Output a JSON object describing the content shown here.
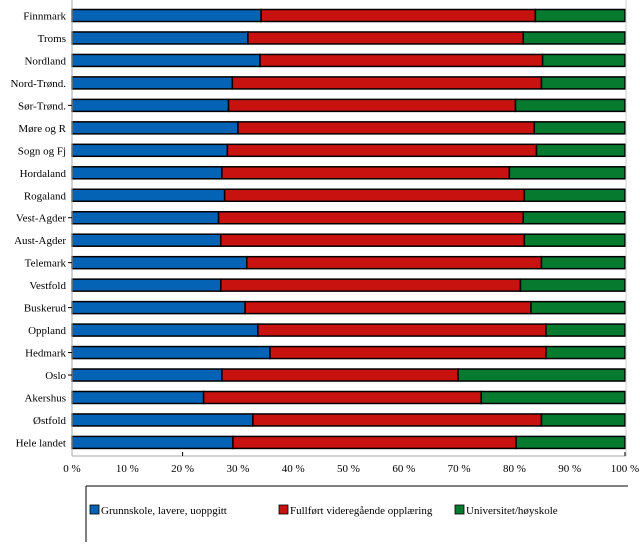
{
  "chart_data": {
    "type": "bar",
    "orientation": "horizontal",
    "stacked": "percent",
    "categories": [
      "Finnmark",
      "Troms",
      "Nordland",
      "Nord-Trønd.",
      "Sør-Trønd.",
      "Møre og R",
      "Sogn og Fj",
      "Hordaland",
      "Rogaland",
      "Vest-Agder",
      "Aust-Agder",
      "Telemark",
      "Vestfold",
      "Buskerud",
      "Oppland",
      "Hedmark",
      "Oslo",
      "Akershus",
      "Østfold",
      "Hele landet"
    ],
    "series": [
      {
        "name": "Grunnskole, lavere, uoppgitt",
        "color": "#0563b5",
        "values": [
          34.2,
          31.8,
          34.0,
          29.0,
          28.3,
          30.0,
          28.1,
          27.1,
          27.6,
          26.5,
          26.9,
          31.6,
          26.9,
          31.3,
          33.6,
          35.8,
          27.1,
          23.8,
          32.7,
          29.1
        ]
      },
      {
        "name": "Fullført videregående opplæring",
        "color": "#c8120f",
        "values": [
          49.6,
          49.8,
          51.1,
          55.9,
          51.9,
          53.6,
          55.9,
          52.0,
          54.2,
          55.1,
          54.9,
          53.3,
          54.2,
          51.7,
          52.1,
          49.9,
          42.7,
          50.2,
          52.2,
          51.2
        ]
      },
      {
        "name": "Universitet/høyskole",
        "color": "#067a2e",
        "values": [
          16.2,
          18.4,
          14.9,
          15.1,
          19.8,
          16.4,
          16.0,
          20.9,
          18.2,
          18.4,
          18.2,
          15.1,
          18.9,
          17.0,
          14.3,
          14.3,
          30.2,
          26.0,
          15.1,
          19.7
        ]
      }
    ],
    "x_ticks": [
      "0 %",
      "10 %",
      "20 %",
      "30 %",
      "40 %",
      "50 %",
      "60 %",
      "70 %",
      "80 %",
      "90 %",
      "100 %"
    ],
    "xlim": [
      0,
      100
    ],
    "grid": false,
    "legend": "bottom",
    "title": "",
    "xlabel": "",
    "ylabel": ""
  }
}
